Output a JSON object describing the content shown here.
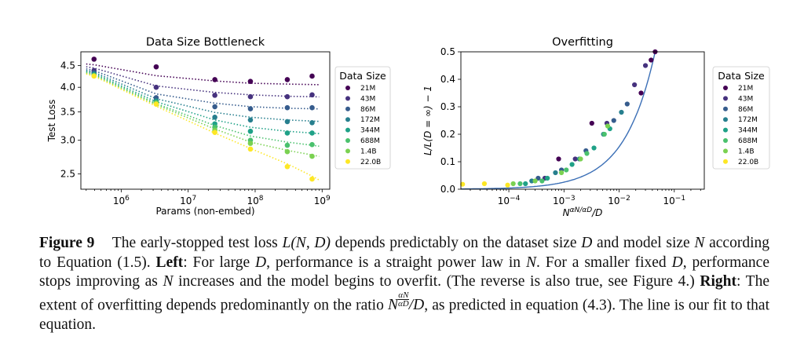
{
  "chart_data": [
    {
      "type": "scatter",
      "title": "Data Size Bottleneck",
      "xlabel": "Params (non-embed)",
      "ylabel": "Test Loss",
      "xscale": "log",
      "yscale": "log",
      "xlim": [
        250000,
        1300000000
      ],
      "ylim": [
        2.3,
        4.85
      ],
      "xticks": [
        1000000,
        10000000,
        100000000,
        1000000000
      ],
      "xtick_labels": [
        "10^6",
        "10^7",
        "10^8",
        "10^9"
      ],
      "yticks": [
        2.5,
        3.0,
        3.5,
        4.0,
        4.5
      ],
      "ytick_labels": [
        "2.5",
        "3.0",
        "3.5",
        "4.0",
        "4.5"
      ],
      "legend": {
        "title": "Data Size",
        "placement": "right-outside"
      },
      "series": [
        {
          "name": "21M",
          "color": "#440154",
          "x": [
            393000,
            3330000,
            25000000,
            85000000,
            302000000,
            708000000
          ],
          "y": [
            4.66,
            4.47,
            4.17,
            4.13,
            4.17,
            4.25
          ],
          "fit": [
            4.52,
            4.26,
            4.14,
            4.09,
            4.07,
            4.06
          ]
        },
        {
          "name": "43M",
          "color": "#46327e",
          "x": [
            393000,
            3330000,
            25000000,
            85000000,
            302000000,
            708000000
          ],
          "y": [
            4.38,
            4.0,
            3.83,
            3.8,
            3.8,
            3.84
          ],
          "fit": [
            4.44,
            4.03,
            3.89,
            3.84,
            3.81,
            3.8
          ]
        },
        {
          "name": "86M",
          "color": "#365c8d",
          "x": [
            393000,
            3330000,
            25000000,
            85000000,
            302000000,
            708000000
          ],
          "y": [
            4.33,
            3.78,
            3.6,
            3.56,
            3.58,
            3.58
          ],
          "fit": [
            4.38,
            3.86,
            3.67,
            3.6,
            3.57,
            3.56
          ]
        },
        {
          "name": "172M",
          "color": "#277f8e",
          "x": [
            393000,
            3330000,
            25000000,
            85000000,
            302000000,
            708000000
          ],
          "y": [
            4.3,
            3.72,
            3.4,
            3.35,
            3.32,
            3.3
          ],
          "fit": [
            4.34,
            3.76,
            3.49,
            3.4,
            3.35,
            3.33
          ]
        },
        {
          "name": "344M",
          "color": "#1fa187",
          "x": [
            393000,
            3330000,
            25000000,
            85000000,
            302000000,
            708000000
          ],
          "y": [
            4.28,
            3.7,
            3.28,
            3.15,
            3.12,
            3.12
          ],
          "fit": [
            4.31,
            3.7,
            3.35,
            3.22,
            3.15,
            3.12
          ]
        },
        {
          "name": "688M",
          "color": "#4ac16d",
          "x": [
            393000,
            3330000,
            25000000,
            85000000,
            302000000,
            708000000
          ],
          "y": [
            4.27,
            3.68,
            3.22,
            3.0,
            2.92,
            2.93
          ],
          "fit": [
            4.29,
            3.66,
            3.25,
            3.07,
            2.97,
            2.92
          ]
        },
        {
          "name": "1.4B",
          "color": "#7ad151",
          "x": [
            393000,
            3330000,
            25000000,
            85000000,
            302000000,
            708000000
          ],
          "y": [
            4.26,
            3.67,
            3.17,
            2.95,
            2.82,
            2.75
          ],
          "fit": [
            4.27,
            3.64,
            3.19,
            2.97,
            2.84,
            2.77
          ]
        },
        {
          "name": "22.0B",
          "color": "#fde725",
          "x": [
            393000,
            3330000,
            25000000,
            85000000,
            302000000,
            708000000
          ],
          "y": [
            4.25,
            3.65,
            3.13,
            2.86,
            2.6,
            2.43
          ],
          "fit": [
            4.25,
            3.61,
            3.12,
            2.87,
            2.64,
            2.47
          ]
        }
      ]
    },
    {
      "type": "scatter",
      "title": "Overfitting",
      "xlabel": "N^{αN/αD}/D",
      "ylabel": "L/L(D = ∞) − 1",
      "xscale": "log",
      "xlim": [
        1.35e-05,
        0.35
      ],
      "ylim": [
        0,
        0.5
      ],
      "xticks": [
        0.0001,
        0.001,
        0.01,
        0.1
      ],
      "xtick_labels": [
        "10^-4",
        "10^-3",
        "10^-2",
        "10^-1"
      ],
      "yticks": [
        0.0,
        0.1,
        0.2,
        0.3,
        0.4,
        0.5
      ],
      "ytick_labels": [
        "0.0",
        "0.1",
        "0.2",
        "0.3",
        "0.4",
        "0.5"
      ],
      "legend": {
        "title": "Data Size",
        "placement": "right-outside"
      },
      "fit_line_color": "#3b6fb6",
      "series": [
        {
          "name": "21M",
          "color": "#440154",
          "x": [
            0.0008,
            0.0032,
            0.025,
            0.038,
            0.045
          ],
          "y": [
            0.11,
            0.24,
            0.35,
            0.47,
            0.5
          ]
        },
        {
          "name": "43M",
          "color": "#46327e",
          "x": [
            0.00045,
            0.0016,
            0.006,
            0.019,
            0.03
          ],
          "y": [
            0.04,
            0.11,
            0.24,
            0.38,
            0.45
          ]
        },
        {
          "name": "86M",
          "color": "#365c8d",
          "x": [
            0.00034,
            0.0009,
            0.0025,
            0.008,
            0.014
          ],
          "y": [
            0.04,
            0.07,
            0.14,
            0.25,
            0.31
          ]
        },
        {
          "name": "172M",
          "color": "#277f8e",
          "x": [
            0.00026,
            0.0007,
            0.0019,
            0.0052,
            0.011
          ],
          "y": [
            0.03,
            0.06,
            0.11,
            0.2,
            0.28
          ]
        },
        {
          "name": "344M",
          "color": "#1fa187",
          "x": [
            0.0002,
            0.0005,
            0.0014,
            0.0035,
            0.0068
          ],
          "y": [
            0.02,
            0.04,
            0.09,
            0.15,
            0.22
          ]
        },
        {
          "name": "688M",
          "color": "#4ac16d",
          "x": [
            0.00016,
            0.0004,
            0.0011,
            0.0026,
            0.0054
          ],
          "y": [
            0.02,
            0.03,
            0.07,
            0.13,
            0.2
          ]
        },
        {
          "name": "1.4B",
          "color": "#7ad151",
          "x": [
            0.00012,
            0.0003,
            0.0009,
            0.002,
            0.0062
          ],
          "y": [
            0.02,
            0.03,
            0.06,
            0.11,
            0.23
          ]
        },
        {
          "name": "22.0B",
          "color": "#fde725",
          "x": [
            1.45e-05,
            3.6e-05,
            9.5e-05
          ],
          "y": [
            0.018,
            0.02,
            0.015
          ]
        }
      ]
    }
  ],
  "caption": {
    "label": "Figure 9",
    "p1": "The early-stopped test loss ",
    "p2": " depends predictably on the dataset size ",
    "p3": " and model size ",
    "p4": " according to Equation (1.5). ",
    "left_label": "Left",
    "p5": ": For large ",
    "p6": ", performance is a straight power law in ",
    "p7": ". For a smaller fixed ",
    "p8": ", performance stops improving as ",
    "p9": " increases and the model begins to overfit. (The reverse is also true, see Figure 4.) ",
    "right_label": "Right",
    "p10": ": The extent of overfitting depends predominantly on the ratio ",
    "p11": ", as predicted in equation (4.3). The line is our fit to that equation.",
    "math_L": "L(N, D)",
    "math_D": "D",
    "math_N": "N",
    "math_ratio_base": "N",
    "math_ratio_num": "αN",
    "math_ratio_den": "αD",
    "math_ratio_tail": "/D"
  }
}
